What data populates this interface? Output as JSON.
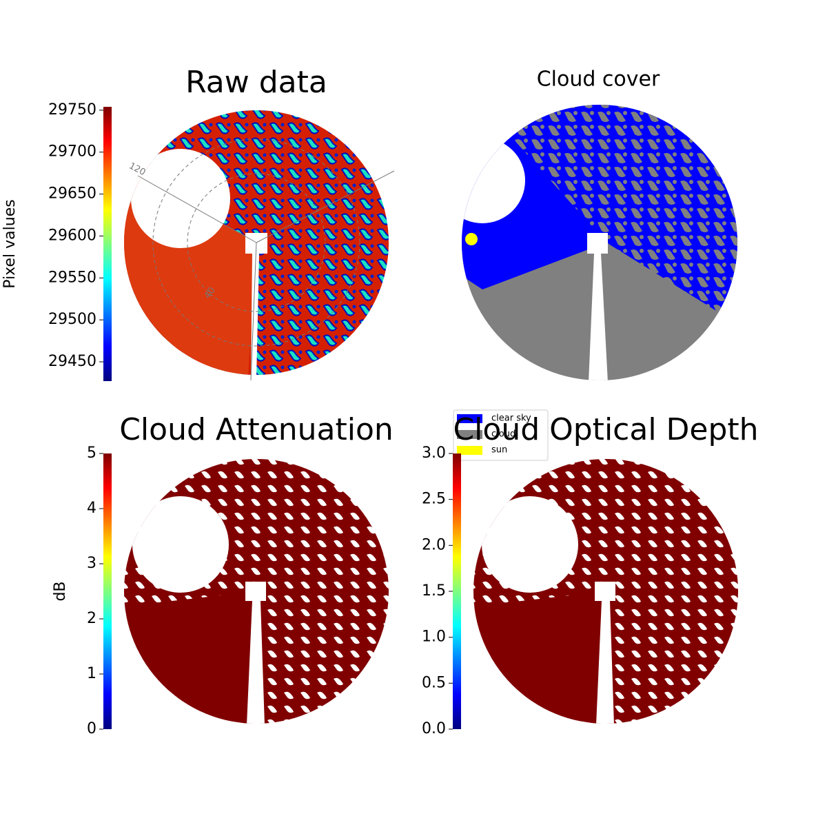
{
  "chart_data": [
    {
      "type": "image",
      "title": "Raw data",
      "colorbar": {
        "label": "Pixel values",
        "lim": [
          29427,
          29754
        ],
        "ticks": [
          29450,
          29500,
          29550,
          29600,
          29650,
          29700,
          29750
        ]
      },
      "annotations": [
        "120",
        "40"
      ]
    },
    {
      "type": "image",
      "title": "Cloud cover",
      "legend": [
        {
          "name": "clear sky",
          "color": "#0000ff"
        },
        {
          "name": "cloud",
          "color": "#808080"
        },
        {
          "name": "sun",
          "color": "#ffff00"
        }
      ]
    },
    {
      "type": "image",
      "title": "Cloud Attenuation",
      "colorbar": {
        "label": "dB",
        "lim": [
          0,
          5
        ],
        "ticks": [
          0,
          1,
          2,
          3,
          4,
          5
        ]
      }
    },
    {
      "type": "image",
      "title": "Cloud Optical Depth",
      "colorbar": {
        "lim": [
          0,
          3
        ],
        "ticks": [
          {
            "value": 0,
            "label": "0.0"
          },
          0.5,
          {
            "value": 1,
            "label": "1.0"
          },
          1.5,
          {
            "value": 2,
            "label": "2.0"
          },
          2.5,
          {
            "value": 3,
            "label": "3.0"
          }
        ]
      }
    }
  ]
}
